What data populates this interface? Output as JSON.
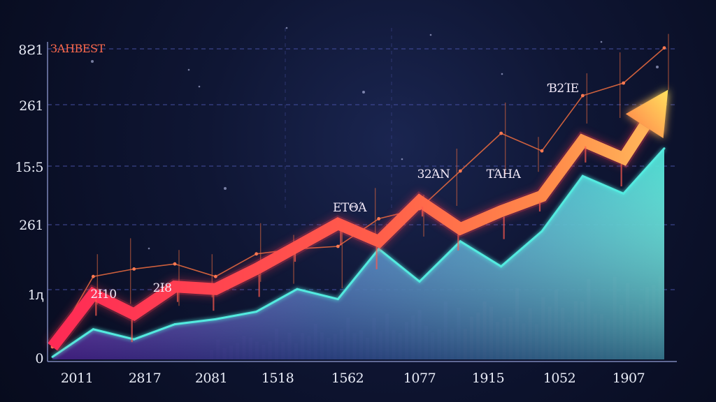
{
  "chart_data": {
    "type": "line",
    "title": "ЗАНВЕЅТ",
    "x_ticks": [
      "2011",
      "2817",
      "2081",
      "1518",
      "1562",
      "1077",
      "1915",
      "1052",
      "1907"
    ],
    "y_ticks": [
      "0",
      "1ԯ",
      "261",
      "15:5",
      "261",
      "8Ƨ1"
    ],
    "annotations": [
      "2Ɨ10",
      "2Ɨ8",
      "ΕΤΘΆ",
      "32ΆΝ",
      "ΤΆΗΑ",
      "Ɓ2ΊΕ"
    ],
    "legend": "none",
    "grid": true,
    "series": [
      {
        "color": "#ff4a52",
        "values": [
          0.5,
          2.6,
          1.8,
          2.9,
          2.8,
          3.6,
          4.5,
          5.4,
          4.7,
          6.3,
          5.2,
          5.9,
          6.5,
          8.7,
          8.0,
          10.5
        ]
      },
      {
        "color": "#e2683e",
        "values": [
          0.5,
          3.3,
          3.6,
          3.8,
          3.3,
          4.2,
          4.4,
          4.5,
          5.6,
          6.0,
          7.5,
          9.0,
          8.3,
          10.5,
          11.0,
          12.4
        ]
      },
      {
        "color": "#52eadf",
        "values": [
          0.1,
          1.2,
          0.8,
          1.4,
          1.6,
          1.9,
          2.8,
          2.4,
          4.4,
          3.1,
          4.7,
          3.7,
          5.1,
          7.3,
          6.6,
          8.4
        ]
      }
    ]
  }
}
